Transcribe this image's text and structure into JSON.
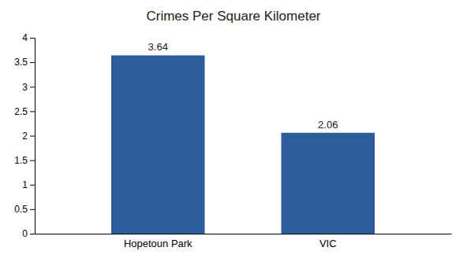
{
  "chart_data": {
    "type": "bar",
    "title": "Crimes Per Square Kilometer",
    "categories": [
      "Hopetoun Park",
      "VIC"
    ],
    "values": [
      3.64,
      2.06
    ],
    "color": "#2e5b9a",
    "ylim": [
      0,
      4
    ],
    "yticks": [
      0,
      0.5,
      1,
      1.5,
      2,
      2.5,
      3,
      3.5,
      4
    ],
    "grid": false,
    "data_labels": true
  }
}
